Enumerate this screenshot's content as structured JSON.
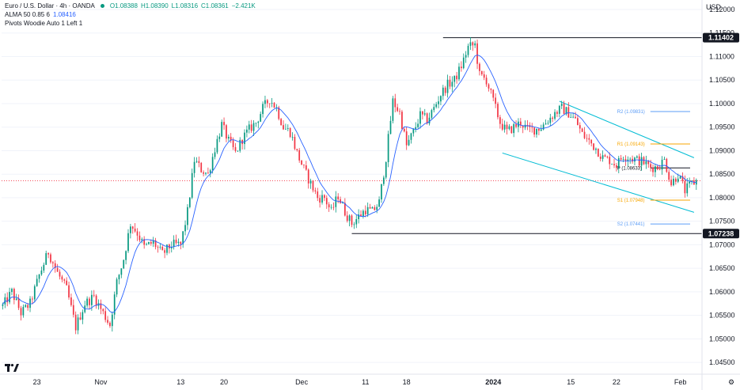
{
  "header": {
    "symbol": "Euro / U.S. Dollar · 4h · OANDA",
    "open": "O1.08388",
    "high": "H1.08390",
    "low": "L1.08316",
    "close": "C1.08361",
    "change": "−2.421K",
    "alma_label": "ALMA 50 0.85 6",
    "alma_value": "1.08416",
    "pivots_label": "Pivots Woodie Auto 1 Left 1"
  },
  "currency": "USD",
  "colors": {
    "up": "#089981",
    "down": "#f23645",
    "alma": "#2962ff",
    "channel": "#00bcd4",
    "pivot_r2": "#5b9cf6",
    "pivot_r1": "#f7a600",
    "pivot_p": "#131722",
    "pivot_s1": "#f7a600",
    "pivot_s2": "#5b9cf6"
  },
  "chart_data": {
    "type": "candlestick",
    "title": "Euro / U.S. Dollar · 4h · OANDA",
    "ylim": [
      1.0425,
      1.12
    ],
    "y_ticks": [
      "1.12000",
      "1.11500",
      "1.11000",
      "1.10500",
      "1.10000",
      "1.09500",
      "1.09000",
      "1.08500",
      "1.08000",
      "1.07500",
      "1.07000",
      "1.06500",
      "1.06000",
      "1.05500",
      "1.05000",
      "1.04500"
    ],
    "y_tick_values": [
      1.12,
      1.115,
      1.11,
      1.105,
      1.1,
      1.095,
      1.09,
      1.085,
      1.08,
      1.075,
      1.07,
      1.065,
      1.06,
      1.055,
      1.05,
      1.045
    ],
    "x_ticks": [
      "23",
      "Nov",
      "13",
      "20",
      "Dec",
      "11",
      "18",
      "2024",
      "15",
      "22",
      "Feb"
    ],
    "x_tick_index": [
      15,
      43,
      78,
      97,
      131,
      159,
      177,
      215,
      249,
      269,
      297
    ],
    "num_bars": 305,
    "price_labels": [
      {
        "value": 1.11402,
        "text": "1.11402"
      },
      {
        "value": 1.07238,
        "text": "1.07238"
      }
    ],
    "horizontal_lines": [
      {
        "value": 1.11402,
        "from_index": 193
      },
      {
        "value": 1.07238,
        "from_index": 153
      }
    ],
    "current_price": 1.08361,
    "pivots": [
      {
        "name": "R2",
        "label": "R2 (1.09831)",
        "value": 1.09831
      },
      {
        "name": "R1",
        "label": "R1 (1.09143)",
        "value": 1.09143
      },
      {
        "name": "P",
        "label": "P (1.08633)",
        "value": 1.08633
      },
      {
        "name": "S1",
        "label": "S1 (1.07948)",
        "value": 1.07948
      },
      {
        "name": "S2",
        "label": "S2 (1.07441)",
        "value": 1.07441
      }
    ],
    "pivot_start_index": 270,
    "pivot_end_index": 310,
    "channel": {
      "upper": [
        [
          244,
          1.1005
        ],
        [
          303,
          1.0885
        ]
      ],
      "lower": [
        [
          219,
          1.0895
        ],
        [
          303,
          1.0769
        ]
      ]
    },
    "anchors": [
      [
        0,
        1.057
      ],
      [
        4,
        1.06
      ],
      [
        8,
        1.0555
      ],
      [
        12,
        1.0575
      ],
      [
        16,
        1.0635
      ],
      [
        20,
        1.0685
      ],
      [
        24,
        1.064
      ],
      [
        28,
        1.0605
      ],
      [
        32,
        1.0525
      ],
      [
        36,
        1.0575
      ],
      [
        40,
        1.059
      ],
      [
        44,
        1.0555
      ],
      [
        47,
        1.053
      ],
      [
        50,
        1.062
      ],
      [
        53,
        1.067
      ],
      [
        56,
        1.0745
      ],
      [
        59,
        1.0725
      ],
      [
        62,
        1.0695
      ],
      [
        66,
        1.0705
      ],
      [
        70,
        1.068
      ],
      [
        74,
        1.07
      ],
      [
        78,
        1.07
      ],
      [
        81,
        1.077
      ],
      [
        84,
        1.088
      ],
      [
        87,
        1.086
      ],
      [
        90,
        1.085
      ],
      [
        93,
        1.0905
      ],
      [
        96,
        1.0955
      ],
      [
        99,
        1.092
      ],
      [
        102,
        1.0895
      ],
      [
        105,
        1.0925
      ],
      [
        108,
        1.0945
      ],
      [
        111,
        1.096
      ],
      [
        114,
        1.099
      ],
      [
        117,
        1.101
      ],
      [
        120,
        1.099
      ],
      [
        123,
        1.095
      ],
      [
        126,
        1.094
      ],
      [
        129,
        1.0895
      ],
      [
        132,
        1.086
      ],
      [
        135,
        1.083
      ],
      [
        138,
        1.08
      ],
      [
        141,
        1.08
      ],
      [
        144,
        1.077
      ],
      [
        147,
        1.0805
      ],
      [
        150,
        1.077
      ],
      [
        153,
        1.0745
      ],
      [
        156,
        1.076
      ],
      [
        159,
        1.0775
      ],
      [
        162,
        1.077
      ],
      [
        165,
        1.079
      ],
      [
        168,
        1.0885
      ],
      [
        171,
        1.1005
      ],
      [
        174,
        1.098
      ],
      [
        177,
        1.091
      ],
      [
        180,
        1.094
      ],
      [
        183,
        1.0975
      ],
      [
        186,
        1.0965
      ],
      [
        189,
        1.099
      ],
      [
        192,
        1.102
      ],
      [
        195,
        1.104
      ],
      [
        198,
        1.105
      ],
      [
        201,
        1.108
      ],
      [
        204,
        1.112
      ],
      [
        207,
        1.1125
      ],
      [
        209,
        1.106
      ],
      [
        212,
        1.105
      ],
      [
        215,
        1.1005
      ],
      [
        218,
        1.096
      ],
      [
        221,
        1.094
      ],
      [
        224,
        1.095
      ],
      [
        227,
        1.096
      ],
      [
        230,
        1.0945
      ],
      [
        233,
        1.0945
      ],
      [
        236,
        1.095
      ],
      [
        239,
        1.0965
      ],
      [
        242,
        1.098
      ],
      [
        245,
        1.099
      ],
      [
        248,
        1.098
      ],
      [
        251,
        1.0965
      ],
      [
        254,
        1.0935
      ],
      [
        257,
        1.092
      ],
      [
        260,
        1.0905
      ],
      [
        263,
        1.0885
      ],
      [
        266,
        1.088
      ],
      [
        269,
        1.087
      ],
      [
        272,
        1.089
      ],
      [
        275,
        1.0885
      ],
      [
        278,
        1.088
      ],
      [
        281,
        1.0875
      ],
      [
        284,
        1.0865
      ],
      [
        287,
        1.0865
      ],
      [
        290,
        1.088
      ],
      [
        293,
        1.083
      ],
      [
        296,
        1.085
      ],
      [
        299,
        1.0815
      ],
      [
        302,
        1.083
      ],
      [
        304,
        1.0836
      ]
    ]
  }
}
